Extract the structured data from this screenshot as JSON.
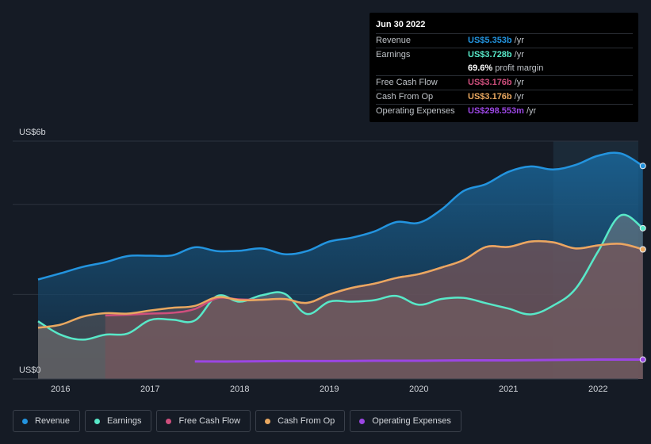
{
  "chart_data": {
    "type": "area",
    "y_unit": "US$",
    "ylim": [
      0,
      6
    ],
    "y_tick_labels": {
      "top": "US$6b",
      "bottom": "US$0"
    },
    "x_ticks": [
      2016,
      2017,
      2018,
      2019,
      2020,
      2021,
      2022
    ],
    "x_tick_labels": [
      "2016",
      "2017",
      "2018",
      "2019",
      "2020",
      "2021",
      "2022"
    ],
    "xlim": [
      2015.55,
      2022.55
    ],
    "highlight_range": [
      2021.5,
      2022.55
    ],
    "series": [
      {
        "name": "Revenue",
        "color": "#2394df",
        "fill": true,
        "points": [
          [
            2015.75,
            2.39
          ],
          [
            2016.0,
            2.55
          ],
          [
            2016.25,
            2.72
          ],
          [
            2016.5,
            2.84
          ],
          [
            2016.75,
            3.0
          ],
          [
            2017.0,
            3.01
          ],
          [
            2017.25,
            3.02
          ],
          [
            2017.5,
            3.23
          ],
          [
            2017.75,
            3.13
          ],
          [
            2018.0,
            3.14
          ],
          [
            2018.25,
            3.2
          ],
          [
            2018.5,
            3.05
          ],
          [
            2018.75,
            3.13
          ],
          [
            2019.0,
            3.38
          ],
          [
            2019.25,
            3.48
          ],
          [
            2019.5,
            3.64
          ],
          [
            2019.75,
            3.89
          ],
          [
            2020.0,
            3.87
          ],
          [
            2020.25,
            4.21
          ],
          [
            2020.5,
            4.7
          ],
          [
            2020.75,
            4.88
          ],
          [
            2021.0,
            5.2
          ],
          [
            2021.25,
            5.34
          ],
          [
            2021.5,
            5.26
          ],
          [
            2021.75,
            5.38
          ],
          [
            2022.0,
            5.62
          ],
          [
            2022.25,
            5.68
          ],
          [
            2022.5,
            5.353
          ]
        ]
      },
      {
        "name": "Earnings",
        "color": "#58e8c8",
        "fill": true,
        "points": [
          [
            2015.75,
            1.3
          ],
          [
            2016.0,
            0.95
          ],
          [
            2016.25,
            0.82
          ],
          [
            2016.5,
            0.95
          ],
          [
            2016.75,
            0.98
          ],
          [
            2017.0,
            1.33
          ],
          [
            2017.25,
            1.34
          ],
          [
            2017.5,
            1.32
          ],
          [
            2017.75,
            1.96
          ],
          [
            2018.0,
            1.81
          ],
          [
            2018.25,
            1.98
          ],
          [
            2018.5,
            2.02
          ],
          [
            2018.75,
            1.49
          ],
          [
            2019.0,
            1.81
          ],
          [
            2019.25,
            1.81
          ],
          [
            2019.5,
            1.85
          ],
          [
            2019.75,
            1.96
          ],
          [
            2020.0,
            1.73
          ],
          [
            2020.25,
            1.88
          ],
          [
            2020.5,
            1.91
          ],
          [
            2020.75,
            1.77
          ],
          [
            2021.0,
            1.63
          ],
          [
            2021.25,
            1.48
          ],
          [
            2021.5,
            1.71
          ],
          [
            2021.75,
            2.15
          ],
          [
            2022.0,
            3.12
          ],
          [
            2022.25,
            4.06
          ],
          [
            2022.5,
            3.728
          ]
        ]
      },
      {
        "name": "Free Cash Flow",
        "color": "#cf4f7d",
        "fill": true,
        "points": [
          [
            2016.5,
            1.45
          ],
          [
            2016.75,
            1.47
          ],
          [
            2017.0,
            1.5
          ],
          [
            2017.25,
            1.52
          ],
          [
            2017.5,
            1.62
          ],
          [
            2017.75,
            1.9
          ],
          [
            2018.0,
            1.87
          ],
          [
            2018.25,
            1.86
          ],
          [
            2018.5,
            1.88
          ],
          [
            2018.75,
            1.78
          ],
          [
            2019.0,
            2.0
          ],
          [
            2019.25,
            2.17
          ],
          [
            2019.5,
            2.28
          ],
          [
            2019.75,
            2.43
          ],
          [
            2020.0,
            2.53
          ],
          [
            2020.25,
            2.7
          ],
          [
            2020.5,
            2.9
          ],
          [
            2020.75,
            3.24
          ],
          [
            2021.0,
            3.24
          ],
          [
            2021.25,
            3.38
          ],
          [
            2021.5,
            3.36
          ],
          [
            2021.75,
            3.2
          ],
          [
            2022.0,
            3.28
          ],
          [
            2022.25,
            3.32
          ],
          [
            2022.5,
            3.176
          ]
        ]
      },
      {
        "name": "Cash From Op",
        "color": "#e9a860",
        "fill": true,
        "points": [
          [
            2015.75,
            1.13
          ],
          [
            2016.0,
            1.21
          ],
          [
            2016.25,
            1.42
          ],
          [
            2016.5,
            1.51
          ],
          [
            2016.75,
            1.5
          ],
          [
            2017.0,
            1.58
          ],
          [
            2017.25,
            1.65
          ],
          [
            2017.5,
            1.7
          ],
          [
            2017.75,
            1.93
          ],
          [
            2018.0,
            1.85
          ],
          [
            2018.25,
            1.86
          ],
          [
            2018.5,
            1.88
          ],
          [
            2018.75,
            1.78
          ],
          [
            2019.0,
            2.0
          ],
          [
            2019.25,
            2.17
          ],
          [
            2019.5,
            2.28
          ],
          [
            2019.75,
            2.43
          ],
          [
            2020.0,
            2.53
          ],
          [
            2020.25,
            2.7
          ],
          [
            2020.5,
            2.9
          ],
          [
            2020.75,
            3.24
          ],
          [
            2021.0,
            3.24
          ],
          [
            2021.25,
            3.38
          ],
          [
            2021.5,
            3.36
          ],
          [
            2021.75,
            3.2
          ],
          [
            2022.0,
            3.28
          ],
          [
            2022.25,
            3.32
          ],
          [
            2022.5,
            3.176
          ]
        ]
      },
      {
        "name": "Operating Expenses",
        "color": "#9b46e3",
        "fill": false,
        "points": [
          [
            2017.5,
            0.25
          ],
          [
            2018.0,
            0.25
          ],
          [
            2018.5,
            0.26
          ],
          [
            2019.0,
            0.26
          ],
          [
            2019.5,
            0.27
          ],
          [
            2020.0,
            0.27
          ],
          [
            2020.5,
            0.28
          ],
          [
            2021.0,
            0.28
          ],
          [
            2021.5,
            0.29
          ],
          [
            2022.0,
            0.3
          ],
          [
            2022.5,
            0.299
          ]
        ]
      }
    ]
  },
  "tooltip": {
    "date": "Jun 30 2022",
    "rows": [
      {
        "label": "Revenue",
        "value": "US$5.353b",
        "unit": "/yr",
        "color": "#2394df"
      },
      {
        "label": "Earnings",
        "value": "US$3.728b",
        "unit": "/yr",
        "color": "#58e8c8"
      },
      {
        "label": "",
        "value": "69.6%",
        "unit": "profit margin",
        "color": "#ffffff"
      },
      {
        "label": "Free Cash Flow",
        "value": "US$3.176b",
        "unit": "/yr",
        "color": "#cf4f7d"
      },
      {
        "label": "Cash From Op",
        "value": "US$3.176b",
        "unit": "/yr",
        "color": "#e9a860"
      },
      {
        "label": "Operating Expenses",
        "value": "US$298.553m",
        "unit": "/yr",
        "color": "#9b46e3"
      }
    ]
  },
  "legend": [
    {
      "label": "Revenue",
      "color": "#2394df"
    },
    {
      "label": "Earnings",
      "color": "#58e8c8"
    },
    {
      "label": "Free Cash Flow",
      "color": "#cf4f7d"
    },
    {
      "label": "Cash From Op",
      "color": "#e9a860"
    },
    {
      "label": "Operating Expenses",
      "color": "#9b46e3"
    }
  ]
}
